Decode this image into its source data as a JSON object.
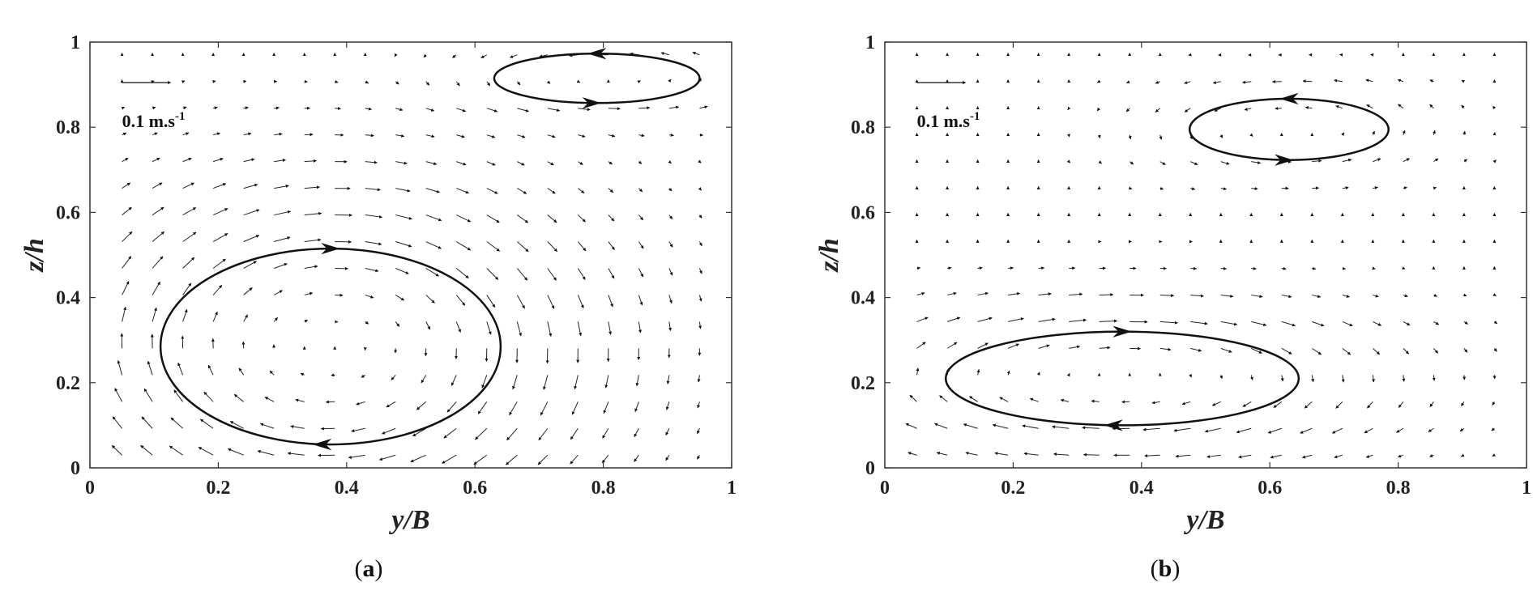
{
  "chart_data": [
    {
      "type": "quiver",
      "panel": "a",
      "caption_prefix": "(",
      "caption_letter": "a",
      "caption_suffix": ")",
      "xlabel": "y/B",
      "ylabel": "z/h",
      "xlim": [
        0,
        1
      ],
      "ylim": [
        0,
        1
      ],
      "xticks": [
        "0",
        "0.2",
        "0.4",
        "0.6",
        "0.8",
        "1"
      ],
      "yticks": [
        "0",
        "0.2",
        "0.4",
        "0.6",
        "0.8",
        "1"
      ],
      "scale_arrow": {
        "value": 0.1,
        "label_main": "0.1 m.s",
        "label_exp": "-1",
        "x": 0.05,
        "y": 0.905
      },
      "vortices": [
        {
          "cx": 0.375,
          "cy": 0.285,
          "rx": 0.265,
          "ry": 0.23,
          "direction": "clockwise"
        },
        {
          "cx": 0.79,
          "cy": 0.915,
          "rx": 0.16,
          "ry": 0.058,
          "direction": "counterclockwise"
        }
      ]
    },
    {
      "type": "quiver",
      "panel": "b",
      "caption_prefix": "(",
      "caption_letter": "b",
      "caption_suffix": ")",
      "xlabel": "y/B",
      "ylabel": "z/h",
      "xlim": [
        0,
        1
      ],
      "ylim": [
        0,
        1
      ],
      "xticks": [
        "0",
        "0.2",
        "0.4",
        "0.6",
        "0.8",
        "1"
      ],
      "yticks": [
        "0",
        "0.2",
        "0.4",
        "0.6",
        "0.8",
        "1"
      ],
      "scale_arrow": {
        "value": 0.1,
        "label_main": "0.1 m.s",
        "label_exp": "-1",
        "x": 0.05,
        "y": 0.905
      },
      "vortices": [
        {
          "cx": 0.37,
          "cy": 0.21,
          "rx": 0.275,
          "ry": 0.11,
          "direction": "clockwise"
        },
        {
          "cx": 0.63,
          "cy": 0.795,
          "rx": 0.155,
          "ry": 0.072,
          "direction": "counterclockwise"
        }
      ]
    }
  ]
}
